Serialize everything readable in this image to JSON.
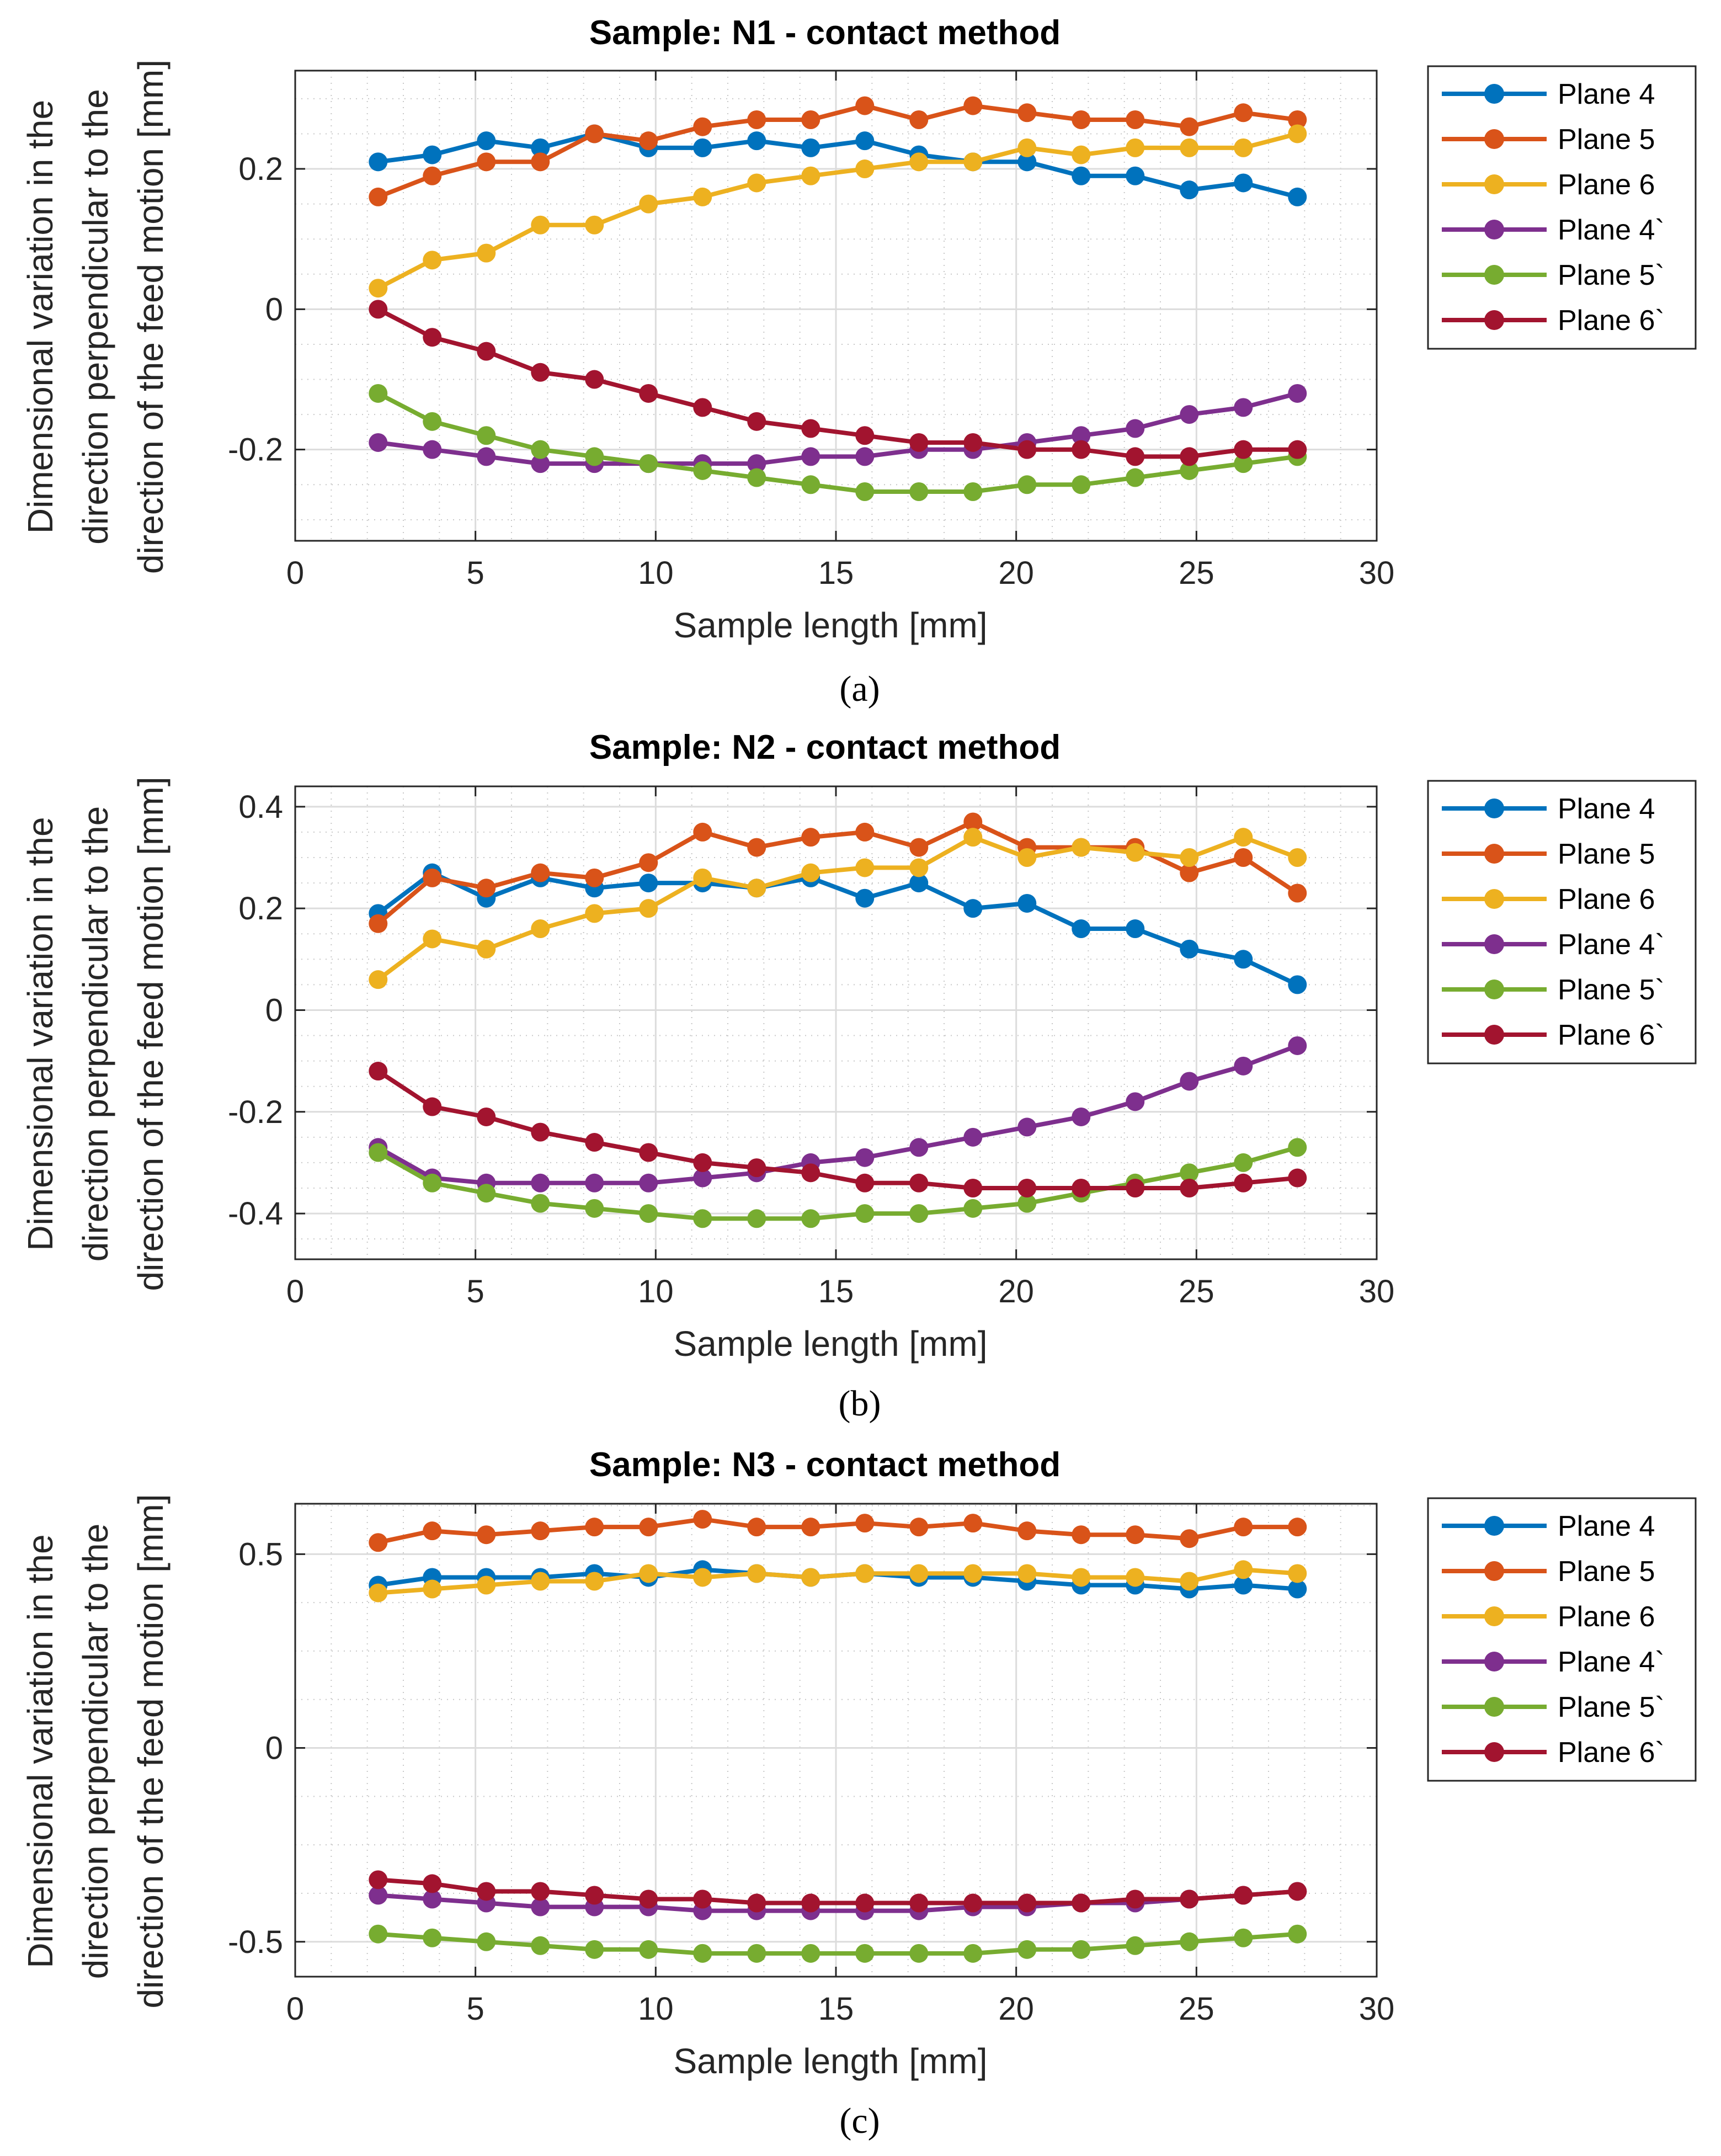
{
  "chart_data": [
    {
      "type": "line",
      "title": "Sample: N1 - contact method",
      "caption": "(a)",
      "xlabel": "Sample length [mm]",
      "ylabel": [
        "Dimensional variation in the",
        "direction perpendicular to the",
        "direction of the feed motion [mm]"
      ],
      "xlim": [
        0,
        30
      ],
      "ylim": [
        -0.33,
        0.34
      ],
      "xticks": [
        0,
        5,
        10,
        15,
        20,
        25,
        30
      ],
      "yticks": [
        -0.2,
        0,
        0.2
      ],
      "ytick_labels": [
        "-0.2",
        "0",
        "0.2"
      ],
      "x": [
        2.3,
        3.8,
        5.3,
        6.8,
        8.3,
        9.8,
        11.3,
        12.8,
        14.3,
        15.8,
        17.3,
        18.8,
        20.3,
        21.8,
        23.3,
        24.8,
        26.3,
        27.8
      ],
      "series": [
        {
          "name": "Plane 4",
          "color": "#0072BD",
          "values": [
            0.21,
            0.22,
            0.24,
            0.23,
            0.25,
            0.23,
            0.23,
            0.24,
            0.23,
            0.24,
            0.22,
            0.21,
            0.21,
            0.19,
            0.19,
            0.17,
            0.18,
            0.16
          ]
        },
        {
          "name": "Plane 5",
          "color": "#D95319",
          "values": [
            0.16,
            0.19,
            0.21,
            0.21,
            0.25,
            0.24,
            0.26,
            0.27,
            0.27,
            0.29,
            0.27,
            0.29,
            0.28,
            0.27,
            0.27,
            0.26,
            0.28,
            0.27
          ]
        },
        {
          "name": "Plane 6",
          "color": "#EDB120",
          "values": [
            0.03,
            0.07,
            0.08,
            0.12,
            0.12,
            0.15,
            0.16,
            0.18,
            0.19,
            0.2,
            0.21,
            0.21,
            0.23,
            0.22,
            0.23,
            0.23,
            0.23,
            0.25
          ]
        },
        {
          "name": "Plane 4`",
          "color": "#7E2F8E",
          "values": [
            -0.19,
            -0.2,
            -0.21,
            -0.22,
            -0.22,
            -0.22,
            -0.22,
            -0.22,
            -0.21,
            -0.21,
            -0.2,
            -0.2,
            -0.19,
            -0.18,
            -0.17,
            -0.15,
            -0.14,
            -0.12
          ]
        },
        {
          "name": "Plane 5`",
          "color": "#77AC30",
          "values": [
            -0.12,
            -0.16,
            -0.18,
            -0.2,
            -0.21,
            -0.22,
            -0.23,
            -0.24,
            -0.25,
            -0.26,
            -0.26,
            -0.26,
            -0.25,
            -0.25,
            -0.24,
            -0.23,
            -0.22,
            -0.21
          ]
        },
        {
          "name": "Plane 6`",
          "color": "#A2142F",
          "values": [
            0.0,
            -0.04,
            -0.06,
            -0.09,
            -0.1,
            -0.12,
            -0.14,
            -0.16,
            -0.17,
            -0.18,
            -0.19,
            -0.19,
            -0.2,
            -0.2,
            -0.21,
            -0.21,
            -0.2,
            -0.2
          ]
        }
      ]
    },
    {
      "type": "line",
      "title": "Sample: N2 - contact method",
      "caption": "(b)",
      "xlabel": "Sample length [mm]",
      "ylabel": [
        "Dimensional variation in the",
        "direction perpendicular to the",
        "direction of the feed motion [mm]"
      ],
      "xlim": [
        0,
        30
      ],
      "ylim": [
        -0.49,
        0.44
      ],
      "xticks": [
        0,
        5,
        10,
        15,
        20,
        25,
        30
      ],
      "yticks": [
        -0.4,
        -0.2,
        0,
        0.2,
        0.4
      ],
      "ytick_labels": [
        "-0.4",
        "-0.2",
        "0",
        "0.2",
        "0.4"
      ],
      "x": [
        2.3,
        3.8,
        5.3,
        6.8,
        8.3,
        9.8,
        11.3,
        12.8,
        14.3,
        15.8,
        17.3,
        18.8,
        20.3,
        21.8,
        23.3,
        24.8,
        26.3,
        27.8
      ],
      "series": [
        {
          "name": "Plane 4",
          "color": "#0072BD",
          "values": [
            0.19,
            0.27,
            0.22,
            0.26,
            0.24,
            0.25,
            0.25,
            0.24,
            0.26,
            0.22,
            0.25,
            0.2,
            0.21,
            0.16,
            0.16,
            0.12,
            0.1,
            0.05
          ]
        },
        {
          "name": "Plane 5",
          "color": "#D95319",
          "values": [
            0.17,
            0.26,
            0.24,
            0.27,
            0.26,
            0.29,
            0.35,
            0.32,
            0.34,
            0.35,
            0.32,
            0.37,
            0.32,
            0.32,
            0.32,
            0.27,
            0.3,
            0.23
          ]
        },
        {
          "name": "Plane 6",
          "color": "#EDB120",
          "values": [
            0.06,
            0.14,
            0.12,
            0.16,
            0.19,
            0.2,
            0.26,
            0.24,
            0.27,
            0.28,
            0.28,
            0.34,
            0.3,
            0.32,
            0.31,
            0.3,
            0.34,
            0.3
          ]
        },
        {
          "name": "Plane 4`",
          "color": "#7E2F8E",
          "values": [
            -0.27,
            -0.33,
            -0.34,
            -0.34,
            -0.34,
            -0.34,
            -0.33,
            -0.32,
            -0.3,
            -0.29,
            -0.27,
            -0.25,
            -0.23,
            -0.21,
            -0.18,
            -0.14,
            -0.11,
            -0.07
          ]
        },
        {
          "name": "Plane 5`",
          "color": "#77AC30",
          "values": [
            -0.28,
            -0.34,
            -0.36,
            -0.38,
            -0.39,
            -0.4,
            -0.41,
            -0.41,
            -0.41,
            -0.4,
            -0.4,
            -0.39,
            -0.38,
            -0.36,
            -0.34,
            -0.32,
            -0.3,
            -0.27
          ]
        },
        {
          "name": "Plane 6`",
          "color": "#A2142F",
          "values": [
            -0.12,
            -0.19,
            -0.21,
            -0.24,
            -0.26,
            -0.28,
            -0.3,
            -0.31,
            -0.32,
            -0.34,
            -0.34,
            -0.35,
            -0.35,
            -0.35,
            -0.35,
            -0.35,
            -0.34,
            -0.33
          ]
        }
      ]
    },
    {
      "type": "line",
      "title": "Sample: N3 - contact method",
      "caption": "(c)",
      "xlabel": "Sample length [mm]",
      "ylabel": [
        "Dimensional variation in the",
        "direction perpendicular to the",
        "direction of the feed motion [mm]"
      ],
      "xlim": [
        0,
        30
      ],
      "ylim": [
        -0.59,
        0.63
      ],
      "xticks": [
        0,
        5,
        10,
        15,
        20,
        25,
        30
      ],
      "yticks": [
        -0.5,
        0,
        0.5
      ],
      "ytick_labels": [
        "-0.5",
        "0",
        "0.5"
      ],
      "x": [
        2.3,
        3.8,
        5.3,
        6.8,
        8.3,
        9.8,
        11.3,
        12.8,
        14.3,
        15.8,
        17.3,
        18.8,
        20.3,
        21.8,
        23.3,
        24.8,
        26.3,
        27.8
      ],
      "series": [
        {
          "name": "Plane 4",
          "color": "#0072BD",
          "values": [
            0.42,
            0.44,
            0.44,
            0.44,
            0.45,
            0.44,
            0.46,
            0.45,
            0.44,
            0.45,
            0.44,
            0.44,
            0.43,
            0.42,
            0.42,
            0.41,
            0.42,
            0.41
          ]
        },
        {
          "name": "Plane 5",
          "color": "#D95319",
          "values": [
            0.53,
            0.56,
            0.55,
            0.56,
            0.57,
            0.57,
            0.59,
            0.57,
            0.57,
            0.58,
            0.57,
            0.58,
            0.56,
            0.55,
            0.55,
            0.54,
            0.57,
            0.57
          ]
        },
        {
          "name": "Plane 6",
          "color": "#EDB120",
          "values": [
            0.4,
            0.41,
            0.42,
            0.43,
            0.43,
            0.45,
            0.44,
            0.45,
            0.44,
            0.45,
            0.45,
            0.45,
            0.45,
            0.44,
            0.44,
            0.43,
            0.46,
            0.45
          ]
        },
        {
          "name": "Plane 4`",
          "color": "#7E2F8E",
          "values": [
            -0.38,
            -0.39,
            -0.4,
            -0.41,
            -0.41,
            -0.41,
            -0.42,
            -0.42,
            -0.42,
            -0.42,
            -0.42,
            -0.41,
            -0.41,
            -0.4,
            -0.4,
            -0.39,
            -0.38,
            -0.37
          ]
        },
        {
          "name": "Plane 5`",
          "color": "#77AC30",
          "values": [
            -0.48,
            -0.49,
            -0.5,
            -0.51,
            -0.52,
            -0.52,
            -0.53,
            -0.53,
            -0.53,
            -0.53,
            -0.53,
            -0.53,
            -0.52,
            -0.52,
            -0.51,
            -0.5,
            -0.49,
            -0.48
          ]
        },
        {
          "name": "Plane 6`",
          "color": "#A2142F",
          "values": [
            -0.34,
            -0.35,
            -0.37,
            -0.37,
            -0.38,
            -0.39,
            -0.39,
            -0.4,
            -0.4,
            -0.4,
            -0.4,
            -0.4,
            -0.4,
            -0.4,
            -0.39,
            -0.39,
            -0.38,
            -0.37
          ]
        }
      ]
    }
  ]
}
